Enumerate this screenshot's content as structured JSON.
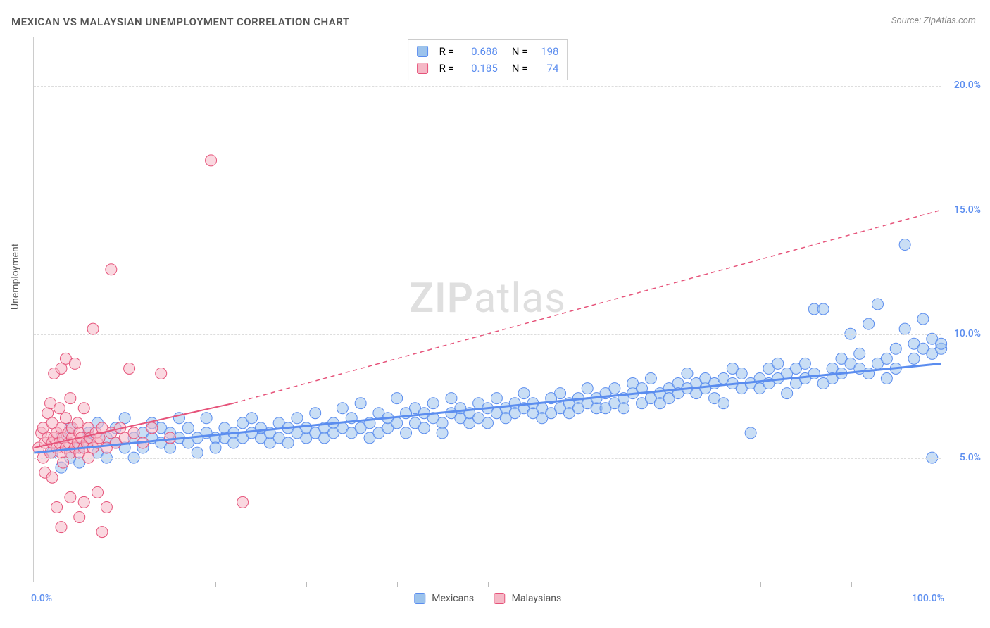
{
  "title": "MEXICAN VS MALAYSIAN UNEMPLOYMENT CORRELATION CHART",
  "source": "Source: ZipAtlas.com",
  "watermark_zip": "ZIP",
  "watermark_atlas": "atlas",
  "ylabel": "Unemployment",
  "chart": {
    "type": "scatter",
    "xlim": [
      0,
      100
    ],
    "ylim": [
      0,
      22
    ],
    "x_start_label": "0.0%",
    "x_end_label": "100.0%",
    "y_ticks": [
      5.0,
      10.0,
      15.0,
      20.0
    ],
    "y_tick_labels": [
      "5.0%",
      "10.0%",
      "15.0%",
      "20.0%"
    ],
    "x_ticks": [
      10,
      20,
      30,
      40,
      50,
      60,
      70,
      80,
      90
    ],
    "background_color": "#ffffff",
    "grid_color": "#dddddd",
    "axis_label_color": "#5b8def",
    "point_radius": 8,
    "point_opacity": 0.55,
    "series": [
      {
        "name": "Mexicans",
        "color": "#9cc3ec",
        "stroke": "#5b8def",
        "R": "0.688",
        "N": "198",
        "trend": {
          "x1": 0,
          "y1": 5.2,
          "x2": 100,
          "y2": 8.8,
          "width": 3
        },
        "points": [
          [
            2,
            5.2
          ],
          [
            3,
            4.6
          ],
          [
            3,
            5.8
          ],
          [
            4,
            5.0
          ],
          [
            4,
            6.2
          ],
          [
            5,
            5.4
          ],
          [
            5,
            4.8
          ],
          [
            6,
            5.6
          ],
          [
            6,
            6.0
          ],
          [
            7,
            5.2
          ],
          [
            7,
            6.4
          ],
          [
            8,
            5.8
          ],
          [
            8,
            5.0
          ],
          [
            9,
            5.6
          ],
          [
            9,
            6.2
          ],
          [
            10,
            5.4
          ],
          [
            10,
            6.6
          ],
          [
            11,
            5.8
          ],
          [
            11,
            5.0
          ],
          [
            12,
            6.0
          ],
          [
            12,
            5.4
          ],
          [
            13,
            5.8
          ],
          [
            13,
            6.4
          ],
          [
            14,
            5.6
          ],
          [
            14,
            6.2
          ],
          [
            15,
            5.4
          ],
          [
            15,
            6.0
          ],
          [
            16,
            5.8
          ],
          [
            16,
            6.6
          ],
          [
            17,
            5.6
          ],
          [
            17,
            6.2
          ],
          [
            18,
            5.8
          ],
          [
            18,
            5.2
          ],
          [
            19,
            6.0
          ],
          [
            19,
            6.6
          ],
          [
            20,
            5.8
          ],
          [
            20,
            5.4
          ],
          [
            21,
            6.2
          ],
          [
            21,
            5.8
          ],
          [
            22,
            6.0
          ],
          [
            22,
            5.6
          ],
          [
            23,
            6.4
          ],
          [
            23,
            5.8
          ],
          [
            24,
            6.0
          ],
          [
            24,
            6.6
          ],
          [
            25,
            5.8
          ],
          [
            25,
            6.2
          ],
          [
            26,
            5.6
          ],
          [
            26,
            6.0
          ],
          [
            27,
            6.4
          ],
          [
            27,
            5.8
          ],
          [
            28,
            6.2
          ],
          [
            28,
            5.6
          ],
          [
            29,
            6.0
          ],
          [
            29,
            6.6
          ],
          [
            30,
            5.8
          ],
          [
            30,
            6.2
          ],
          [
            31,
            6.0
          ],
          [
            31,
            6.8
          ],
          [
            32,
            6.2
          ],
          [
            32,
            5.8
          ],
          [
            33,
            6.4
          ],
          [
            33,
            6.0
          ],
          [
            34,
            6.2
          ],
          [
            34,
            7.0
          ],
          [
            35,
            6.0
          ],
          [
            35,
            6.6
          ],
          [
            36,
            6.2
          ],
          [
            36,
            7.2
          ],
          [
            37,
            6.4
          ],
          [
            37,
            5.8
          ],
          [
            38,
            6.0
          ],
          [
            38,
            6.8
          ],
          [
            39,
            6.2
          ],
          [
            39,
            6.6
          ],
          [
            40,
            6.4
          ],
          [
            40,
            7.4
          ],
          [
            41,
            6.0
          ],
          [
            41,
            6.8
          ],
          [
            42,
            6.4
          ],
          [
            42,
            7.0
          ],
          [
            43,
            6.2
          ],
          [
            43,
            6.8
          ],
          [
            44,
            6.6
          ],
          [
            44,
            7.2
          ],
          [
            45,
            6.4
          ],
          [
            45,
            6.0
          ],
          [
            46,
            6.8
          ],
          [
            46,
            7.4
          ],
          [
            47,
            6.6
          ],
          [
            47,
            7.0
          ],
          [
            48,
            6.4
          ],
          [
            48,
            6.8
          ],
          [
            49,
            7.2
          ],
          [
            49,
            6.6
          ],
          [
            50,
            7.0
          ],
          [
            50,
            6.4
          ],
          [
            51,
            6.8
          ],
          [
            51,
            7.4
          ],
          [
            52,
            7.0
          ],
          [
            52,
            6.6
          ],
          [
            53,
            7.2
          ],
          [
            53,
            6.8
          ],
          [
            54,
            7.0
          ],
          [
            54,
            7.6
          ],
          [
            55,
            6.8
          ],
          [
            55,
            7.2
          ],
          [
            56,
            7.0
          ],
          [
            56,
            6.6
          ],
          [
            57,
            7.4
          ],
          [
            57,
            6.8
          ],
          [
            58,
            7.0
          ],
          [
            58,
            7.6
          ],
          [
            59,
            7.2
          ],
          [
            59,
            6.8
          ],
          [
            60,
            7.4
          ],
          [
            60,
            7.0
          ],
          [
            61,
            7.2
          ],
          [
            61,
            7.8
          ],
          [
            62,
            7.0
          ],
          [
            62,
            7.4
          ],
          [
            63,
            7.6
          ],
          [
            63,
            7.0
          ],
          [
            64,
            7.2
          ],
          [
            64,
            7.8
          ],
          [
            65,
            7.4
          ],
          [
            65,
            7.0
          ],
          [
            66,
            7.6
          ],
          [
            66,
            8.0
          ],
          [
            67,
            7.2
          ],
          [
            67,
            7.8
          ],
          [
            68,
            7.4
          ],
          [
            68,
            8.2
          ],
          [
            69,
            7.6
          ],
          [
            69,
            7.2
          ],
          [
            70,
            7.8
          ],
          [
            70,
            7.4
          ],
          [
            71,
            8.0
          ],
          [
            71,
            7.6
          ],
          [
            72,
            7.8
          ],
          [
            72,
            8.4
          ],
          [
            73,
            7.6
          ],
          [
            73,
            8.0
          ],
          [
            74,
            7.8
          ],
          [
            74,
            8.2
          ],
          [
            75,
            8.0
          ],
          [
            75,
            7.4
          ],
          [
            76,
            8.2
          ],
          [
            76,
            7.2
          ],
          [
            77,
            8.0
          ],
          [
            77,
            8.6
          ],
          [
            78,
            7.8
          ],
          [
            78,
            8.4
          ],
          [
            79,
            8.0
          ],
          [
            79,
            6.0
          ],
          [
            80,
            8.2
          ],
          [
            80,
            7.8
          ],
          [
            81,
            8.6
          ],
          [
            81,
            8.0
          ],
          [
            82,
            8.2
          ],
          [
            82,
            8.8
          ],
          [
            83,
            8.4
          ],
          [
            83,
            7.6
          ],
          [
            84,
            8.0
          ],
          [
            84,
            8.6
          ],
          [
            85,
            8.2
          ],
          [
            85,
            8.8
          ],
          [
            86,
            11.0
          ],
          [
            86,
            8.4
          ],
          [
            87,
            8.0
          ],
          [
            87,
            11.0
          ],
          [
            88,
            8.6
          ],
          [
            88,
            8.2
          ],
          [
            89,
            9.0
          ],
          [
            89,
            8.4
          ],
          [
            90,
            8.8
          ],
          [
            90,
            10.0
          ],
          [
            91,
            8.6
          ],
          [
            91,
            9.2
          ],
          [
            92,
            10.4
          ],
          [
            92,
            8.4
          ],
          [
            93,
            8.8
          ],
          [
            93,
            11.2
          ],
          [
            94,
            9.0
          ],
          [
            94,
            8.2
          ],
          [
            95,
            9.4
          ],
          [
            95,
            8.6
          ],
          [
            96,
            13.6
          ],
          [
            96,
            10.2
          ],
          [
            97,
            9.0
          ],
          [
            97,
            9.6
          ],
          [
            98,
            10.6
          ],
          [
            98,
            9.4
          ],
          [
            99,
            9.2
          ],
          [
            99,
            9.8
          ],
          [
            99,
            5.0
          ],
          [
            100,
            9.4
          ],
          [
            100,
            9.6
          ]
        ]
      },
      {
        "name": "Malaysians",
        "color": "#f5b8c6",
        "stroke": "#e6537a",
        "R": "0.185",
        "N": "74",
        "trend": {
          "x1": 0,
          "y1": 5.4,
          "x2": 22,
          "y2": 7.2,
          "width": 2
        },
        "trend_extend": {
          "x1": 22,
          "y1": 7.2,
          "x2": 100,
          "y2": 15.0
        },
        "points": [
          [
            0.5,
            5.4
          ],
          [
            0.8,
            6.0
          ],
          [
            1.0,
            5.0
          ],
          [
            1.0,
            6.2
          ],
          [
            1.2,
            5.6
          ],
          [
            1.2,
            4.4
          ],
          [
            1.5,
            5.8
          ],
          [
            1.5,
            6.8
          ],
          [
            1.8,
            5.2
          ],
          [
            1.8,
            7.2
          ],
          [
            2.0,
            5.6
          ],
          [
            2.0,
            6.4
          ],
          [
            2.0,
            4.2
          ],
          [
            2.2,
            5.8
          ],
          [
            2.2,
            8.4
          ],
          [
            2.5,
            5.4
          ],
          [
            2.5,
            6.0
          ],
          [
            2.5,
            3.0
          ],
          [
            2.8,
            5.6
          ],
          [
            2.8,
            7.0
          ],
          [
            3.0,
            5.2
          ],
          [
            3.0,
            6.2
          ],
          [
            3.0,
            8.6
          ],
          [
            3.0,
            2.2
          ],
          [
            3.2,
            5.8
          ],
          [
            3.2,
            4.8
          ],
          [
            3.5,
            5.4
          ],
          [
            3.5,
            6.6
          ],
          [
            3.5,
            9.0
          ],
          [
            3.8,
            5.6
          ],
          [
            3.8,
            6.0
          ],
          [
            4.0,
            5.2
          ],
          [
            4.0,
            7.4
          ],
          [
            4.0,
            3.4
          ],
          [
            4.2,
            5.8
          ],
          [
            4.2,
            6.2
          ],
          [
            4.5,
            5.4
          ],
          [
            4.5,
            8.8
          ],
          [
            4.8,
            5.6
          ],
          [
            4.8,
            6.4
          ],
          [
            5.0,
            5.2
          ],
          [
            5.0,
            6.0
          ],
          [
            5.0,
            2.6
          ],
          [
            5.2,
            5.8
          ],
          [
            5.5,
            5.4
          ],
          [
            5.5,
            7.0
          ],
          [
            5.5,
            3.2
          ],
          [
            5.8,
            5.6
          ],
          [
            6.0,
            6.2
          ],
          [
            6.0,
            5.0
          ],
          [
            6.2,
            5.8
          ],
          [
            6.5,
            10.2
          ],
          [
            6.5,
            5.4
          ],
          [
            6.8,
            6.0
          ],
          [
            7.0,
            5.6
          ],
          [
            7.0,
            3.6
          ],
          [
            7.2,
            5.8
          ],
          [
            7.5,
            6.2
          ],
          [
            7.5,
            2.0
          ],
          [
            8.0,
            5.4
          ],
          [
            8.0,
            3.0
          ],
          [
            8.5,
            6.0
          ],
          [
            8.5,
            12.6
          ],
          [
            9.0,
            5.6
          ],
          [
            9.5,
            6.2
          ],
          [
            10.0,
            5.8
          ],
          [
            10.5,
            8.6
          ],
          [
            11.0,
            6.0
          ],
          [
            12.0,
            5.6
          ],
          [
            13.0,
            6.2
          ],
          [
            14.0,
            8.4
          ],
          [
            15.0,
            5.8
          ],
          [
            19.5,
            17.0
          ],
          [
            23.0,
            3.2
          ]
        ]
      }
    ]
  },
  "legend": {
    "s1_label": "Mexicans",
    "s2_label": "Malaysians"
  },
  "stats_labels": {
    "R": "R =",
    "N": "N ="
  }
}
